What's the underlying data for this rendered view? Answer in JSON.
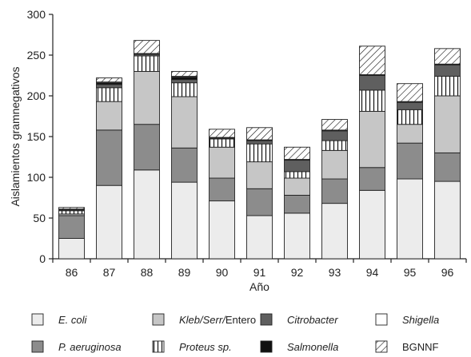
{
  "chart_data": {
    "type": "bar",
    "stacked": true,
    "title": "",
    "xlabel": "Año",
    "ylabel": "Aislamientos gramnegativos",
    "ylim": [
      0,
      300
    ],
    "yticks": [
      0,
      50,
      100,
      150,
      200,
      250,
      300
    ],
    "grid": false,
    "legend_position": "bottom",
    "categories": [
      "86",
      "87",
      "88",
      "89",
      "90",
      "91",
      "92",
      "93",
      "94",
      "95",
      "96"
    ],
    "series": [
      {
        "name": "E. coli",
        "italic": true,
        "pattern": "fill",
        "color": "#ececec",
        "values": [
          25,
          90,
          109,
          94,
          71,
          53,
          56,
          68,
          84,
          98,
          95
        ]
      },
      {
        "name": "P. aeruginosa",
        "italic": true,
        "pattern": "fill",
        "color": "#8c8c8c",
        "values": [
          28,
          68,
          56,
          42,
          28,
          33,
          22,
          30,
          28,
          44,
          35
        ]
      },
      {
        "name": "Kleb/Serr/Entero",
        "italic_prefix": "Kleb/Serr/",
        "plain_suffix": "Entero",
        "pattern": "fill",
        "color": "#c6c6c6",
        "values": [
          2,
          35,
          65,
          63,
          38,
          33,
          21,
          35,
          69,
          23,
          70
        ]
      },
      {
        "name": "Proteus sp.",
        "italic": true,
        "pattern": "vlines",
        "color": "#ffffff",
        "values": [
          4,
          17,
          19,
          17,
          10,
          22,
          8,
          12,
          26,
          18,
          24
        ]
      },
      {
        "name": "Citrobacter",
        "italic": true,
        "pattern": "fill",
        "color": "#5f5f5f",
        "values": [
          1,
          4,
          2,
          4,
          1,
          4,
          14,
          12,
          18,
          9,
          14
        ]
      },
      {
        "name": "Salmonella",
        "italic": true,
        "pattern": "fill",
        "color": "#111111",
        "values": [
          1,
          2,
          1,
          3,
          1,
          1,
          1,
          1,
          1,
          1,
          1
        ]
      },
      {
        "name": "Shigella",
        "italic": true,
        "pattern": "fill",
        "color": "#ffffff",
        "values": [
          0,
          1,
          0,
          1,
          0,
          0,
          0,
          0,
          0,
          0,
          0
        ]
      },
      {
        "name": "BGNNF",
        "italic": false,
        "pattern": "hatch",
        "color": "#ffffff",
        "values": [
          2,
          5,
          16,
          6,
          10,
          15,
          15,
          13,
          35,
          22,
          19
        ]
      }
    ],
    "legend_rows": [
      [
        "E. coli",
        "Kleb/Serr/Entero",
        "Citrobacter",
        "Shigella"
      ],
      [
        "P. aeruginosa",
        "Proteus sp.",
        "Salmonella",
        "BGNNF"
      ]
    ]
  }
}
